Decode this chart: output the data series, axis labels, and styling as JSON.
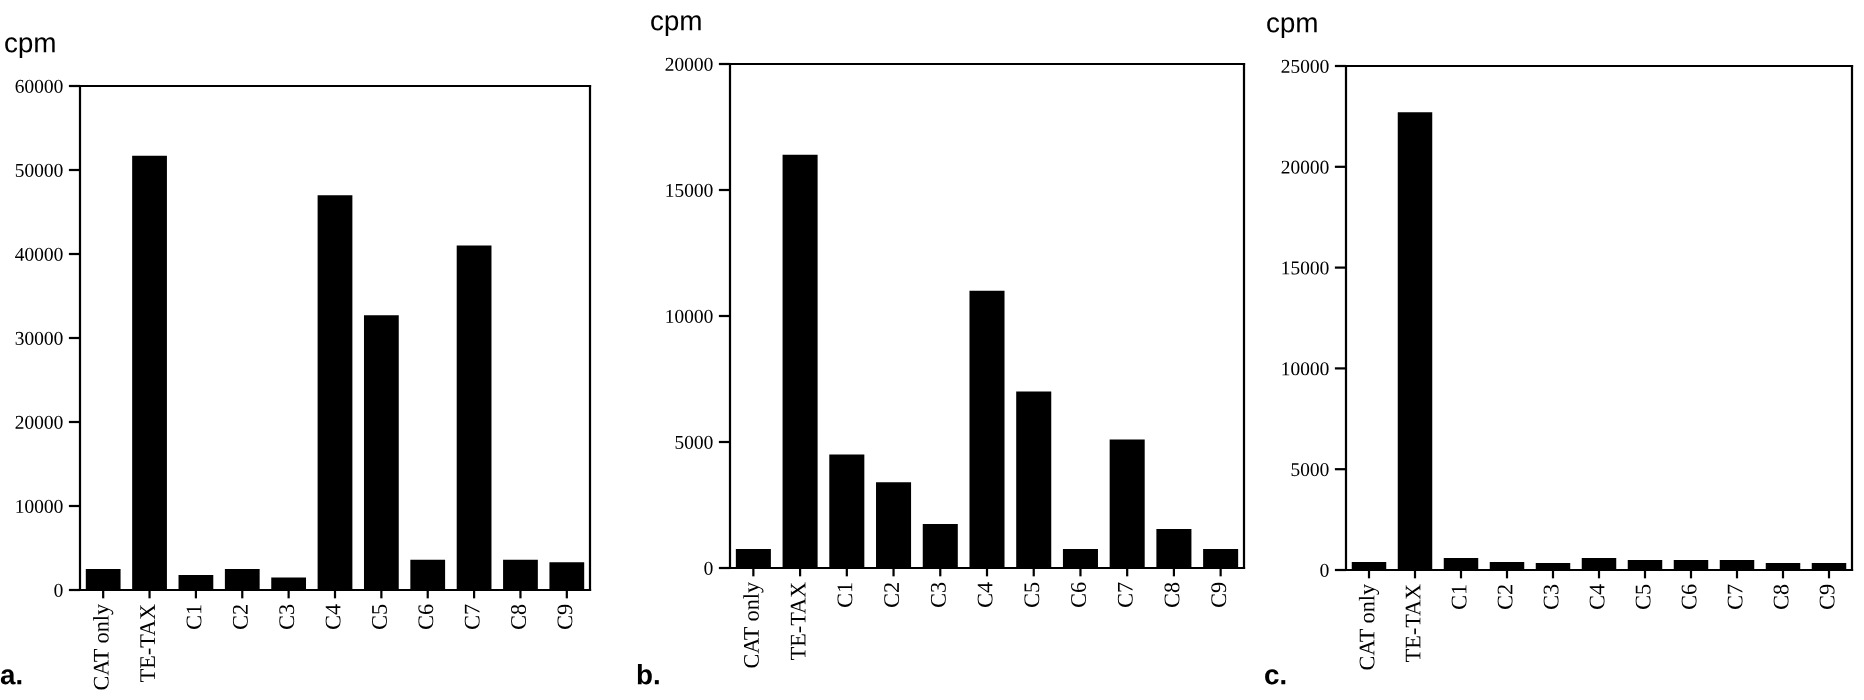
{
  "chart_data": [
    {
      "type": "bar",
      "ylabel": "cpm",
      "annotations": [
        "a."
      ],
      "categories": [
        "CAT only",
        "TE-TAX",
        "C1",
        "C2",
        "C3",
        "C4",
        "C5",
        "C6",
        "C7",
        "C8",
        "C9"
      ],
      "values": [
        2500,
        51700,
        1800,
        2500,
        1500,
        47000,
        32700,
        3600,
        41000,
        3600,
        3300
      ],
      "color": "#000000",
      "ylim": [
        0,
        60000
      ],
      "yticks": [
        0,
        10000,
        20000,
        30000,
        40000,
        50000,
        60000
      ],
      "grid": false
    },
    {
      "type": "bar",
      "ylabel": "cpm",
      "annotations": [
        "b."
      ],
      "categories": [
        "CAT only",
        "TE-TAX",
        "C1",
        "C2",
        "C3",
        "C4",
        "C5",
        "C6",
        "C7",
        "C8",
        "C9"
      ],
      "values": [
        750,
        16400,
        4500,
        3400,
        1750,
        11000,
        7000,
        750,
        5100,
        1550,
        750
      ],
      "color": "#000000",
      "ylim": [
        0,
        20000
      ],
      "yticks": [
        0,
        5000,
        10000,
        15000,
        20000
      ],
      "grid": false
    },
    {
      "type": "bar",
      "ylabel": "cpm",
      "annotations": [
        "c."
      ],
      "categories": [
        "CAT only",
        "TE-TAX",
        "C1",
        "C2",
        "C3",
        "C4",
        "C5",
        "C6",
        "C7",
        "C8",
        "C9"
      ],
      "values": [
        400,
        22700,
        600,
        400,
        350,
        600,
        500,
        500,
        500,
        350,
        350
      ],
      "color": "#000000",
      "ylim": [
        0,
        25000
      ],
      "yticks": [
        0,
        5000,
        10000,
        15000,
        20000,
        25000
      ],
      "grid": false
    }
  ]
}
